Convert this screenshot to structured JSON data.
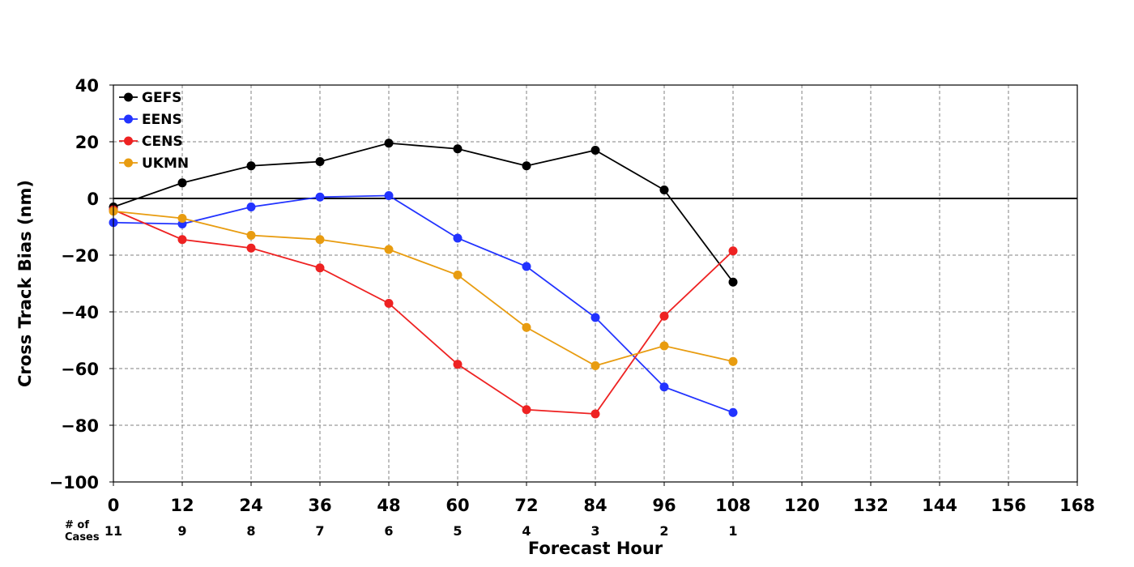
{
  "chart_data": {
    "type": "line",
    "xlabel": "Forecast Hour",
    "ylabel": "Cross Track Bias (nm)",
    "xlim": [
      0,
      168
    ],
    "ylim": [
      -100,
      40
    ],
    "x_ticks": [
      "0",
      "12",
      "24",
      "36",
      "48",
      "60",
      "72",
      "84",
      "96",
      "108",
      "120",
      "132",
      "144",
      "156",
      "168"
    ],
    "y_ticks": [
      "40",
      "20",
      "0",
      "−20",
      "−40",
      "−60",
      "−80",
      "−100"
    ],
    "grid": true,
    "legend_position": "top-left",
    "x": [
      0,
      12,
      24,
      36,
      48,
      60,
      72,
      84,
      96,
      108
    ],
    "cases_label": "# of\nCases",
    "cases": [
      "11",
      "9",
      "8",
      "7",
      "6",
      "5",
      "4",
      "3",
      "2",
      "1"
    ],
    "series": [
      {
        "name": "GEFS",
        "color": "#000000",
        "values": [
          -3,
          5.5,
          11.5,
          13,
          19.5,
          17.5,
          11.5,
          17,
          3,
          -29.5
        ]
      },
      {
        "name": "EENS",
        "color": "#2233ff",
        "values": [
          -8.5,
          -9,
          -3,
          0.5,
          1,
          -14,
          -24,
          -42,
          -66.5,
          -75.5
        ]
      },
      {
        "name": "CENS",
        "color": "#ee2222",
        "values": [
          -4,
          -14.5,
          -17.5,
          -24.5,
          -37,
          -58.5,
          -74.5,
          -76,
          -41.5,
          -18.5
        ]
      },
      {
        "name": "UKMN",
        "color": "#e89c10",
        "values": [
          -4.5,
          -7,
          -13,
          -14.5,
          -18,
          -27,
          -45.5,
          -59,
          -52,
          -57.5
        ]
      }
    ]
  }
}
